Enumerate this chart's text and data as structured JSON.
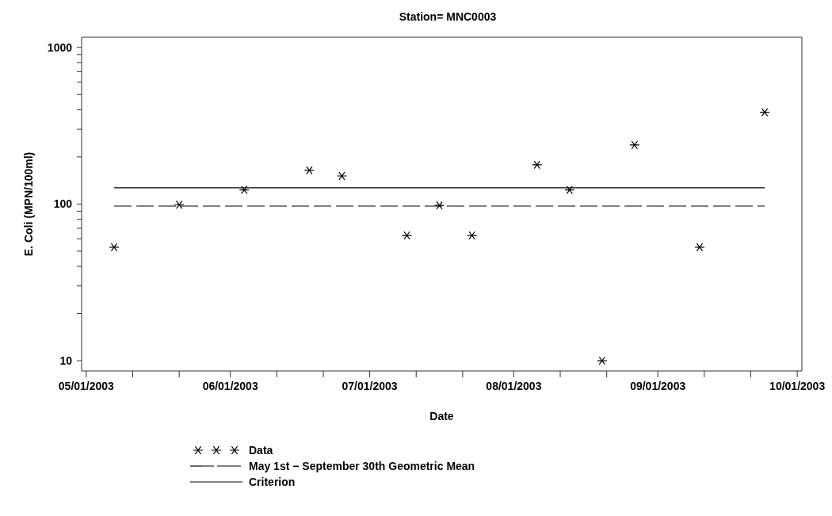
{
  "chart_data": {
    "type": "scatter",
    "title": "Station= MNC0003",
    "xlabel": "Date",
    "ylabel": "E. Coli (MPN/100ml)",
    "log": "y",
    "grid": false,
    "legend": "bottom",
    "xlim": [
      "2003-04-30",
      "2003-10-02"
    ],
    "xticks": [
      {
        "value": "2003-05-01",
        "label": "05/01/2003"
      },
      {
        "value": "2003-05-11",
        "label": null
      },
      {
        "value": "2003-05-21",
        "label": null
      },
      {
        "value": "2003-06-01",
        "label": "06/01/2003"
      },
      {
        "value": "2003-06-11",
        "label": null
      },
      {
        "value": "2003-06-21",
        "label": null
      },
      {
        "value": "2003-07-01",
        "label": "07/01/2003"
      },
      {
        "value": "2003-07-11",
        "label": null
      },
      {
        "value": "2003-07-21",
        "label": null
      },
      {
        "value": "2003-08-01",
        "label": "08/01/2003"
      },
      {
        "value": "2003-08-11",
        "label": null
      },
      {
        "value": "2003-08-21",
        "label": null
      },
      {
        "value": "2003-09-01",
        "label": "09/01/2003"
      },
      {
        "value": "2003-09-11",
        "label": null
      },
      {
        "value": "2003-09-21",
        "label": null
      },
      {
        "value": "2003-10-01",
        "label": "10/01/2003"
      }
    ],
    "ylim": [
      8.6,
      1160
    ],
    "yticks": [
      10,
      {
        "value": 20,
        "label": null
      },
      {
        "value": 30,
        "label": null
      },
      {
        "value": 40,
        "label": null
      },
      {
        "value": 50,
        "label": null
      },
      {
        "value": 60,
        "label": null
      },
      {
        "value": 70,
        "label": null
      },
      {
        "value": 80,
        "label": null
      },
      {
        "value": 90,
        "label": null
      },
      100,
      {
        "value": 200,
        "label": null
      },
      {
        "value": 300,
        "label": null
      },
      {
        "value": 400,
        "label": null
      },
      {
        "value": 500,
        "label": null
      },
      {
        "value": 600,
        "label": null
      },
      {
        "value": 700,
        "label": null
      },
      {
        "value": 800,
        "label": null
      },
      {
        "value": 900,
        "label": null
      },
      1000
    ],
    "series": [
      {
        "name": "Data",
        "marker": "cross",
        "color": "#000000",
        "x": [
          "2003-05-07",
          "2003-05-21",
          "2003-06-04",
          "2003-06-18",
          "2003-06-25",
          "2003-07-09",
          "2003-07-16",
          "2003-07-23",
          "2003-08-06",
          "2003-08-13",
          "2003-08-20",
          "2003-08-27",
          "2003-09-10",
          "2003-09-24"
        ],
        "values": [
          53,
          99,
          123,
          164,
          151,
          63,
          98,
          63,
          178,
          123,
          10,
          238,
          53,
          385
        ]
      },
      {
        "name": "May 1st − September 30th Geometric Mean",
        "type": "line",
        "marker": "none",
        "line_style": "dashed",
        "color": "#000000",
        "x": [
          "2003-05-07",
          "2003-09-24"
        ],
        "values": [
          97,
          97
        ]
      },
      {
        "name": "Criterion",
        "type": "line",
        "marker": "none",
        "line_style": "solid",
        "color": "#000000",
        "x": [
          "2003-05-07",
          "2003-09-24"
        ],
        "values": [
          127,
          127
        ]
      }
    ]
  }
}
